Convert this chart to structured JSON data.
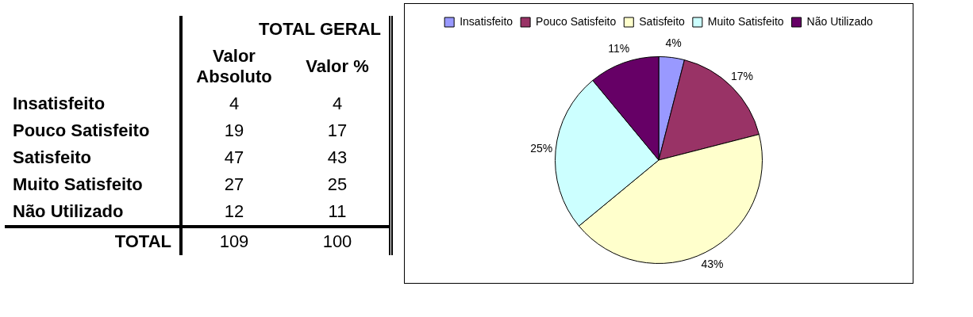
{
  "chart_data": [
    {
      "type": "other",
      "title": "TOTAL GERAL",
      "categories": [
        "Insatisfeito",
        "Pouco Satisfeito",
        "Satisfeito",
        "Muito Satisfeito",
        "Não Utilizado"
      ],
      "series": [
        {
          "name": "Valor Absoluto",
          "values": [
            4,
            19,
            47,
            27,
            12
          ]
        },
        {
          "name": "Valor %",
          "values": [
            4,
            17,
            43,
            25,
            11
          ]
        }
      ],
      "data_labels": true,
      "annotations": [
        "TOTAL"
      ],
      "totals": [
        "109",
        "100"
      ]
    },
    {
      "type": "pie",
      "categories": [
        "Insatisfeito",
        "Pouco Satisfeito",
        "Satisfeito",
        "Muito Satisfeito",
        "Não Utilizado"
      ],
      "values": [
        4,
        17,
        43,
        25,
        11
      ],
      "colors": [
        "#9999ff",
        "#993366",
        "#ffffcc",
        "#ccffff",
        "#660066"
      ],
      "value_labels": [
        "4%",
        "17%",
        "43%",
        "25%",
        "11%"
      ],
      "legend": "top"
    }
  ]
}
